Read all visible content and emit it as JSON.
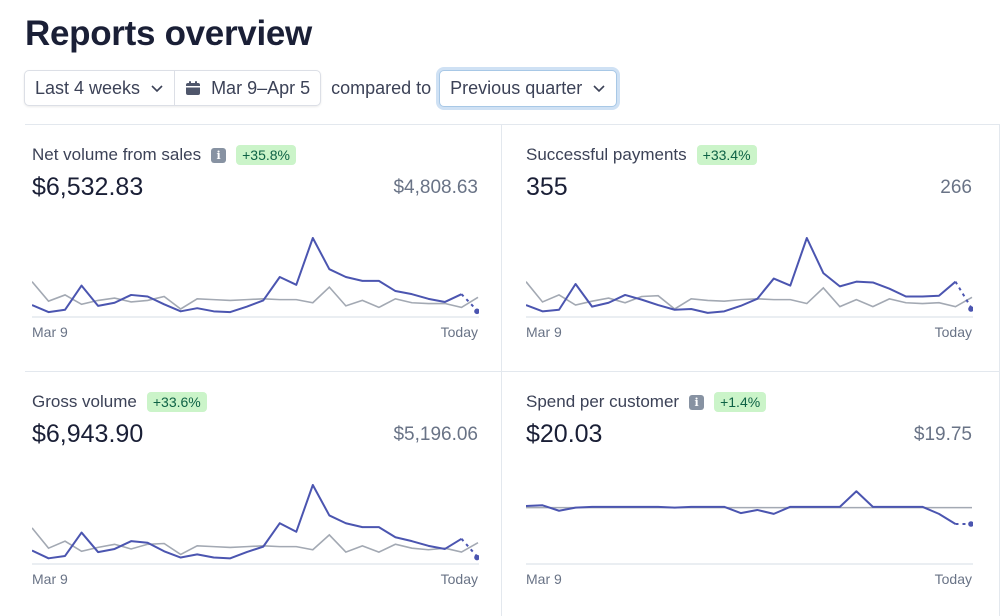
{
  "page": {
    "title": "Reports overview"
  },
  "filters": {
    "range_label": "Last 4 weeks",
    "date_range": "Mar 9–Apr 5",
    "compared_to_label": "compared to",
    "comparison": "Previous quarter"
  },
  "colors": {
    "current": "#4b55b0",
    "previous": "#a3a9b3",
    "badge_bg": "#cbf4c9",
    "badge_text": "#0e6245"
  },
  "cards": [
    {
      "title": "Net volume from sales",
      "has_info": true,
      "change": "+35.8%",
      "value": "$6,532.83",
      "compare_value": "$4,808.63",
      "axis_start": "Mar 9",
      "axis_end": "Today"
    },
    {
      "title": "Successful payments",
      "has_info": false,
      "change": "+33.4%",
      "value": "355",
      "compare_value": "266",
      "axis_start": "Mar 9",
      "axis_end": "Today"
    },
    {
      "title": "Gross volume",
      "has_info": true,
      "change": "+33.6%",
      "value": "$6,943.90",
      "compare_value": "$5,196.06",
      "axis_start": "Mar 9",
      "axis_end": "Today"
    },
    {
      "title": "Spend per customer",
      "has_info": true,
      "change": "+1.4%",
      "value": "$20.03",
      "compare_value": "$19.75",
      "axis_start": "Mar 9",
      "axis_end": "Today"
    }
  ],
  "chart_data": [
    {
      "type": "line",
      "title": "Net volume from sales",
      "x": [
        "Mar 9",
        "",
        "",
        "",
        "",
        "",
        "",
        "",
        "",
        "",
        "",
        "",
        "",
        "",
        "",
        "",
        "",
        "",
        "",
        "",
        "",
        "",
        "",
        "",
        "",
        "",
        "",
        "Today"
      ],
      "ylim": [
        0,
        100
      ],
      "series": [
        {
          "name": "Current",
          "values": [
            14,
            5,
            8,
            39,
            13,
            17,
            27,
            25,
            15,
            6,
            10,
            6,
            5,
            12,
            20,
            50,
            40,
            100,
            60,
            50,
            45,
            45,
            32,
            28,
            22,
            18,
            28,
            6
          ],
          "projected_last": true
        },
        {
          "name": "Previous",
          "values": [
            44,
            19,
            27,
            15,
            20,
            23,
            18,
            20,
            25,
            9,
            22,
            21,
            20,
            21,
            22,
            21,
            21,
            17,
            37,
            13,
            20,
            11,
            22,
            17,
            16,
            16,
            11,
            24
          ]
        }
      ]
    },
    {
      "type": "line",
      "title": "Successful payments",
      "x": [
        "Mar 9",
        "",
        "",
        "",
        "",
        "",
        "",
        "",
        "",
        "",
        "",
        "",
        "",
        "",
        "",
        "",
        "",
        "",
        "",
        "",
        "",
        "",
        "",
        "",
        "",
        "",
        "",
        "Today"
      ],
      "ylim": [
        0,
        100
      ],
      "series": [
        {
          "name": "Current",
          "values": [
            14,
            6,
            8,
            41,
            12,
            17,
            27,
            21,
            14,
            8,
            9,
            4,
            6,
            13,
            22,
            48,
            39,
            100,
            55,
            38,
            44,
            43,
            35,
            25,
            25,
            26,
            44,
            9
          ],
          "projected_last": true
        },
        {
          "name": "Previous",
          "values": [
            44,
            18,
            27,
            14,
            19,
            23,
            17,
            25,
            26,
            9,
            22,
            20,
            19,
            21,
            22,
            21,
            21,
            16,
            36,
            12,
            21,
            12,
            22,
            17,
            16,
            17,
            12,
            24
          ]
        }
      ]
    },
    {
      "type": "line",
      "title": "Gross volume",
      "x": [
        "Mar 9",
        "",
        "",
        "",
        "",
        "",
        "",
        "",
        "",
        "",
        "",
        "",
        "",
        "",
        "",
        "",
        "",
        "",
        "",
        "",
        "",
        "",
        "",
        "",
        "",
        "",
        "",
        "Today"
      ],
      "ylim": [
        0,
        100
      ],
      "series": [
        {
          "name": "Current",
          "values": [
            16,
            6,
            9,
            39,
            14,
            18,
            28,
            26,
            15,
            7,
            11,
            7,
            6,
            14,
            21,
            51,
            40,
            100,
            61,
            51,
            46,
            46,
            33,
            28,
            22,
            18,
            31,
            7
          ],
          "projected_last": true
        },
        {
          "name": "Previous",
          "values": [
            45,
            19,
            28,
            15,
            20,
            24,
            18,
            24,
            25,
            11,
            22,
            21,
            20,
            21,
            22,
            21,
            21,
            17,
            36,
            14,
            22,
            14,
            24,
            19,
            17,
            19,
            14,
            26
          ]
        }
      ]
    },
    {
      "type": "line",
      "title": "Spend per customer",
      "x": [
        "Mar 9",
        "",
        "",
        "",
        "",
        "",
        "",
        "",
        "",
        "",
        "",
        "",
        "",
        "",
        "",
        "",
        "",
        "",
        "",
        "",
        "",
        "",
        "",
        "",
        "",
        "",
        "",
        "Today"
      ],
      "ylim": [
        0,
        100
      ],
      "series": [
        {
          "name": "Current",
          "values": [
            73,
            74,
            67,
            71,
            72,
            72,
            72,
            72,
            72,
            71,
            72,
            72,
            72,
            64,
            68,
            63,
            72,
            72,
            72,
            72,
            92,
            72,
            72,
            72,
            72,
            63,
            50,
            50
          ],
          "projected_last": true
        },
        {
          "name": "Previous",
          "values": [
            71,
            71,
            71,
            71,
            71,
            71,
            71,
            71,
            71,
            71,
            71,
            71,
            71,
            71,
            71,
            71,
            71,
            71,
            71,
            71,
            71,
            71,
            71,
            71,
            71,
            71,
            71,
            71
          ]
        }
      ]
    }
  ]
}
